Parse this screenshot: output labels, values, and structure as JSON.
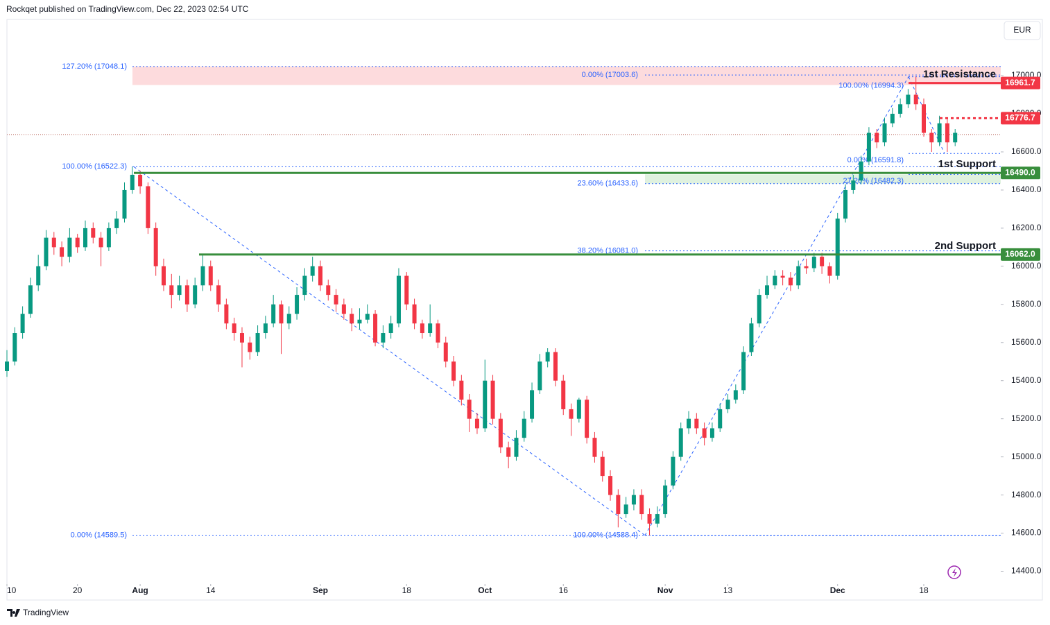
{
  "header": "Rockqet published on TradingView.com, Dec 22, 2023 02:54 UTC",
  "currency": "EUR",
  "footer": "TradingView",
  "chart_data": {
    "type": "candlestick",
    "up_color": "#089981",
    "down_color": "#f23645",
    "ylim": [
      14340,
      17295
    ],
    "xlim": [
      0,
      127
    ],
    "yticks": [
      {
        "value": 14400,
        "label": "14400.0"
      },
      {
        "value": 14600,
        "label": "14600.0"
      },
      {
        "value": 14800,
        "label": "14800.0"
      },
      {
        "value": 15000,
        "label": "15000.0"
      },
      {
        "value": 15200,
        "label": "15200.0"
      },
      {
        "value": 15400,
        "label": "15400.0"
      },
      {
        "value": 15600,
        "label": "15600.0"
      },
      {
        "value": 15800,
        "label": "15800.0"
      },
      {
        "value": 16000,
        "label": "16000.0"
      },
      {
        "value": 16200,
        "label": "16200.0"
      },
      {
        "value": 16400,
        "label": "16400.0"
      },
      {
        "value": 16600,
        "label": "16600.0"
      },
      {
        "value": 16800,
        "label": "16800.0"
      },
      {
        "value": 17000,
        "label": "17000.0"
      }
    ],
    "xticks": [
      {
        "value": 0,
        "label": "10"
      },
      {
        "value": 9,
        "label": "20"
      },
      {
        "value": 17,
        "label": "Aug"
      },
      {
        "value": 26,
        "label": "14"
      },
      {
        "value": 40,
        "label": "Sep"
      },
      {
        "value": 51,
        "label": "18"
      },
      {
        "value": 61,
        "label": "Oct"
      },
      {
        "value": 71,
        "label": "16"
      },
      {
        "value": 84,
        "label": "Nov"
      },
      {
        "value": 92,
        "label": "13"
      },
      {
        "value": 106,
        "label": "Dec"
      },
      {
        "value": 117,
        "label": "18"
      }
    ],
    "ohlc": [
      [
        15450,
        15560,
        15420,
        15500
      ],
      [
        15500,
        15680,
        15480,
        15650
      ],
      [
        15650,
        15790,
        15620,
        15750
      ],
      [
        15750,
        15940,
        15730,
        15900
      ],
      [
        15900,
        16060,
        15870,
        16000
      ],
      [
        16000,
        16190,
        15980,
        16150
      ],
      [
        16150,
        16180,
        16060,
        16100
      ],
      [
        16100,
        16130,
        16000,
        16050
      ],
      [
        16050,
        16200,
        16020,
        16150
      ],
      [
        16150,
        16170,
        16070,
        16100
      ],
      [
        16100,
        16240,
        16080,
        16200
      ],
      [
        16200,
        16230,
        16120,
        16150
      ],
      [
        16150,
        16180,
        16000,
        16100
      ],
      [
        16100,
        16230,
        16080,
        16200
      ],
      [
        16200,
        16290,
        16170,
        16250
      ],
      [
        16250,
        16440,
        16230,
        16400
      ],
      [
        16400,
        16522,
        16380,
        16480
      ],
      [
        16480,
        16500,
        16380,
        16420
      ],
      [
        16420,
        16440,
        16170,
        16200
      ],
      [
        16200,
        16230,
        15950,
        16000
      ],
      [
        16000,
        16040,
        15870,
        15900
      ],
      [
        15900,
        15960,
        15780,
        15850
      ],
      [
        15850,
        15950,
        15820,
        15900
      ],
      [
        15900,
        15930,
        15760,
        15800
      ],
      [
        15800,
        15940,
        15780,
        15900
      ],
      [
        15900,
        16062,
        15870,
        16000
      ],
      [
        16000,
        16030,
        15870,
        15900
      ],
      [
        15900,
        15930,
        15760,
        15800
      ],
      [
        15800,
        15830,
        15670,
        15700
      ],
      [
        15700,
        15730,
        15610,
        15650
      ],
      [
        15650,
        15680,
        15470,
        15600
      ],
      [
        15600,
        15630,
        15510,
        15550
      ],
      [
        15550,
        15690,
        15530,
        15650
      ],
      [
        15650,
        15740,
        15620,
        15700
      ],
      [
        15700,
        15850,
        15680,
        15800
      ],
      [
        15800,
        15820,
        15540,
        15700
      ],
      [
        15700,
        15790,
        15670,
        15750
      ],
      [
        15750,
        15890,
        15720,
        15850
      ],
      [
        15850,
        15990,
        15820,
        15950
      ],
      [
        15950,
        16050,
        15920,
        16000
      ],
      [
        16000,
        16030,
        15870,
        15900
      ],
      [
        15900,
        15930,
        15820,
        15850
      ],
      [
        15850,
        15880,
        15760,
        15800
      ],
      [
        15800,
        15830,
        15720,
        15750
      ],
      [
        15750,
        15780,
        15660,
        15700
      ],
      [
        15700,
        15780,
        15670,
        15720
      ],
      [
        15720,
        15800,
        15700,
        15750
      ],
      [
        15750,
        15770,
        15580,
        15600
      ],
      [
        15600,
        15690,
        15570,
        15650
      ],
      [
        15650,
        15740,
        15620,
        15700
      ],
      [
        15700,
        15990,
        15680,
        15950
      ],
      [
        15950,
        15970,
        15770,
        15800
      ],
      [
        15800,
        15830,
        15670,
        15700
      ],
      [
        15700,
        15720,
        15620,
        15650
      ],
      [
        15650,
        15800,
        15630,
        15700
      ],
      [
        15700,
        15720,
        15570,
        15600
      ],
      [
        15600,
        15630,
        15470,
        15500
      ],
      [
        15500,
        15530,
        15370,
        15400
      ],
      [
        15400,
        15430,
        15270,
        15300
      ],
      [
        15300,
        15330,
        15130,
        15200
      ],
      [
        15200,
        15230,
        15120,
        15150
      ],
      [
        15150,
        15510,
        15130,
        15400
      ],
      [
        15400,
        15430,
        15170,
        15200
      ],
      [
        15200,
        15230,
        15020,
        15050
      ],
      [
        15050,
        15080,
        14940,
        15000
      ],
      [
        15000,
        15140,
        14980,
        15100
      ],
      [
        15100,
        15240,
        15080,
        15200
      ],
      [
        15200,
        15390,
        15180,
        15350
      ],
      [
        15350,
        15540,
        15330,
        15500
      ],
      [
        15500,
        15570,
        15470,
        15550
      ],
      [
        15550,
        15570,
        15370,
        15400
      ],
      [
        15400,
        15430,
        15220,
        15250
      ],
      [
        15250,
        15280,
        15110,
        15200
      ],
      [
        15200,
        15310,
        15180,
        15300
      ],
      [
        15300,
        15320,
        15070,
        15100
      ],
      [
        15100,
        15130,
        14970,
        15000
      ],
      [
        15000,
        15030,
        14870,
        14900
      ],
      [
        14900,
        14930,
        14770,
        14800
      ],
      [
        14800,
        14830,
        14630,
        14700
      ],
      [
        14700,
        14790,
        14680,
        14750
      ],
      [
        14750,
        14830,
        14720,
        14800
      ],
      [
        14800,
        14830,
        14670,
        14700
      ],
      [
        14700,
        14730,
        14588.4,
        14650
      ],
      [
        14650,
        14740,
        14630,
        14700
      ],
      [
        14700,
        14880,
        14680,
        14850
      ],
      [
        14850,
        15030,
        14830,
        15000
      ],
      [
        15000,
        15180,
        14980,
        15150
      ],
      [
        15150,
        15240,
        15120,
        15200
      ],
      [
        15200,
        15230,
        15120,
        15150
      ],
      [
        15150,
        15180,
        15060,
        15100
      ],
      [
        15100,
        15180,
        15080,
        15150
      ],
      [
        15150,
        15280,
        15130,
        15250
      ],
      [
        15250,
        15330,
        15230,
        15300
      ],
      [
        15300,
        15380,
        15280,
        15350
      ],
      [
        15350,
        15580,
        15330,
        15550
      ],
      [
        15550,
        15730,
        15530,
        15700
      ],
      [
        15700,
        15880,
        15680,
        15850
      ],
      [
        15850,
        15950,
        15830,
        15900
      ],
      [
        15900,
        15980,
        15880,
        15950
      ],
      [
        15950,
        15980,
        15900,
        15940
      ],
      [
        15940,
        15970,
        15870,
        15900
      ],
      [
        15900,
        16030,
        15880,
        16000
      ],
      [
        16000,
        16040,
        15960,
        15990
      ],
      [
        15990,
        16070,
        15970,
        16050
      ],
      [
        16050,
        16070,
        15960,
        16000
      ],
      [
        16000,
        16020,
        15910,
        15950
      ],
      [
        15950,
        16280,
        15930,
        16250
      ],
      [
        16250,
        16430,
        16230,
        16400
      ],
      [
        16400,
        16480,
        16380,
        16450
      ],
      [
        16450,
        16580,
        16430,
        16550
      ],
      [
        16550,
        16730,
        16530,
        16700
      ],
      [
        16700,
        16720,
        16620,
        16650
      ],
      [
        16650,
        16780,
        16630,
        16750
      ],
      [
        16750,
        16830,
        16730,
        16800
      ],
      [
        16800,
        16880,
        16780,
        16850
      ],
      [
        16850,
        16930,
        16830,
        16900
      ],
      [
        16900,
        16994.3,
        16820,
        16850
      ],
      [
        16850,
        16880,
        16680,
        16700
      ],
      [
        16700,
        16720,
        16600,
        16650
      ],
      [
        16650,
        16790,
        16630,
        16750
      ],
      [
        16750,
        16780,
        16600,
        16650
      ],
      [
        16650,
        16720,
        16630,
        16700
      ]
    ],
    "fib_levels": [
      {
        "text": "127.20% (17048.1)",
        "value": 17048.1
      },
      {
        "text": "0.00% (17003.6)",
        "value": 17003.6
      },
      {
        "text": "100.00% (16994.3)",
        "value": 16994.3
      },
      {
        "text": "100.00% (16522.3)",
        "value": 16522.3
      },
      {
        "text": "0.00% (16591.8)",
        "value": 16591.8
      },
      {
        "text": "23.60% (16433.6)",
        "value": 16433.6
      },
      {
        "text": "27.20% (16482.3)",
        "value": 16482.3
      },
      {
        "text": "38.20% (16081.0)",
        "value": 16081.0
      },
      {
        "text": "0.00% (14589.5)",
        "value": 14589.5
      },
      {
        "text": "100.00% (14588.4)",
        "value": 14588.4
      }
    ],
    "levels": [
      {
        "name": "1st Resistance",
        "value": 16961.7,
        "color": "#f23645"
      },
      {
        "value": 16776.7,
        "color": "#f23645"
      },
      {
        "name": "1st Support",
        "value": 16490,
        "label": "16490.0",
        "color": "#388e3c"
      },
      {
        "name": "2nd Support",
        "value": 16062,
        "label": "16062.0",
        "color": "#388e3c"
      }
    ]
  }
}
